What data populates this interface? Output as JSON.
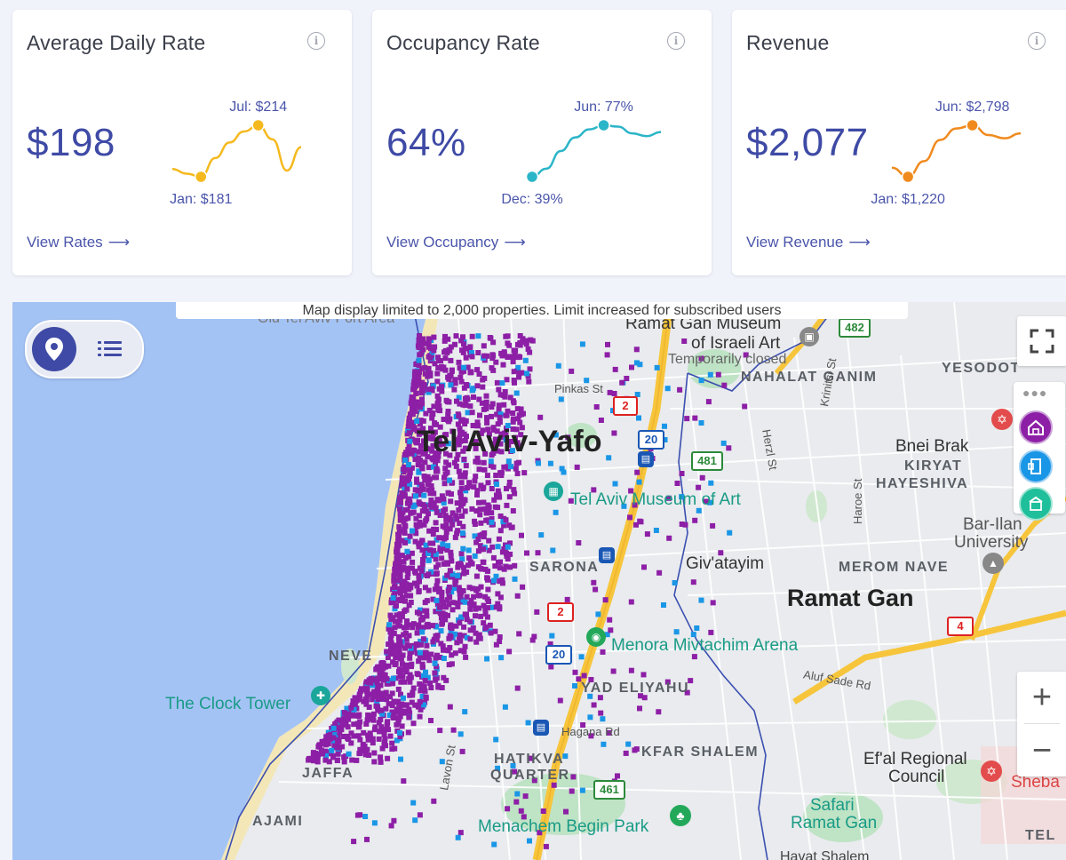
{
  "cards": [
    {
      "title": "Average Daily Rate",
      "value": "$198",
      "high_label": "Jul: $214",
      "low_label": "Jan: $181",
      "link": "View Rates",
      "color": "#f5b91e",
      "series": [
        186,
        183,
        181,
        193,
        203,
        210,
        214,
        205,
        185,
        200
      ]
    },
    {
      "title": "Occupancy Rate",
      "value": "64%",
      "high_label": "Jun: 77%",
      "low_label": "Dec: 39%",
      "link": "View Occupancy",
      "color": "#2bb5c8",
      "series": [
        39,
        45,
        58,
        68,
        74,
        77,
        76,
        71,
        69,
        72
      ]
    },
    {
      "title": "Revenue",
      "value": "$2,077",
      "high_label": "Jun: $2,798",
      "low_label": "Jan: $1,220",
      "link": "View Revenue",
      "color": "#f08a1e",
      "series": [
        1500,
        1220,
        1700,
        2350,
        2700,
        2798,
        2500,
        2400,
        2550
      ]
    }
  ],
  "map": {
    "banner": "Map display limited to 2,000 properties. Limit increased for subscribed users",
    "city": "Tel Aviv-Yafo",
    "labels": {
      "ramat_gan": "Ramat Gan",
      "givatayim": "Giv'atayim",
      "bnei_brak": "Bnei Brak",
      "kiryat": "KIRYAT",
      "hayeshiva": "HAYESHIVA",
      "nahalat_ganim": "NAHALAT GANIM",
      "yesodot": "YESODOT",
      "merom_nave": "MEROM NAVE",
      "sarona": "SARONA",
      "neve": "NEVE",
      "yad_eliyahu": "YAD ELIYAHU",
      "kfar_shalem": "KFAR SHALEM",
      "hatikva": "HATIKVA",
      "quarter": "QUARTER",
      "jaffa": "JAFFA",
      "ajami": "AJAMI",
      "tel": "TEL",
      "museum_art": "Tel Aviv Museum of Art",
      "ramat_gan_museum": "Ramat Gan Museum",
      "israeli_art": "of Israeli Art",
      "temporarily_closed": "Temporarily closed",
      "menora": "Menora Mivtachim Arena",
      "clock_tower": "The Clock Tower",
      "menachem_begin": "Menachem Begin Park",
      "bar_ilan": "Bar-Ilan",
      "university": "University",
      "efal": "Ef'al Regional",
      "council": "Council",
      "safari": "Safari",
      "safari_rg": "Ramat Gan",
      "sheba": "Sheba",
      "old_port": "Old Tel Aviv Port Area",
      "pinkas": "Pinkas St",
      "herzl": "Herzl St",
      "krinitsi": "Krinitsi St",
      "haroe": "Haroe St",
      "aluf_sade": "Aluf Sade Rd",
      "hagana": "Hagana Rd",
      "lavon": "Lavon St",
      "havat": "Havat Shalem"
    },
    "road_shields": [
      "2",
      "20",
      "481",
      "482",
      "2",
      "20",
      "461",
      "4"
    ],
    "colors": {
      "sea": "#a4c3f5",
      "land": "#e9ebee",
      "purple_dot": "#8d1fa6",
      "blue_dot": "#1a96e6",
      "highway": "#f7c53c",
      "boundary": "#3b4fb0"
    },
    "zoom_in": "+",
    "zoom_out": "−"
  }
}
